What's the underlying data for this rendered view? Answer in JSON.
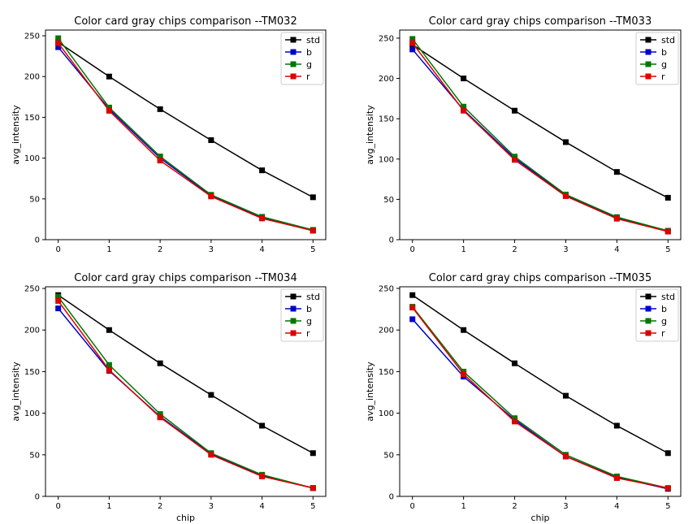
{
  "chart_data": [
    {
      "type": "line",
      "title": "Color card gray chips comparison --TM032",
      "xlabel": "",
      "ylabel": "avg_intensity",
      "x": [
        0,
        1,
        2,
        3,
        4,
        5
      ],
      "xlim": [
        -0.25,
        5.25
      ],
      "ylim": [
        0,
        257
      ],
      "yticks": [
        0,
        50,
        100,
        150,
        200,
        250
      ],
      "legend_position": "top-right",
      "grid": false,
      "series": [
        {
          "name": "std",
          "color": "#000000",
          "values": [
            242,
            200,
            160,
            122,
            85,
            52
          ]
        },
        {
          "name": "b",
          "color": "#0000cc",
          "values": [
            236,
            160,
            100,
            54,
            27,
            11
          ]
        },
        {
          "name": "g",
          "color": "#007700",
          "values": [
            247,
            162,
            102,
            55,
            28,
            12
          ]
        },
        {
          "name": "r",
          "color": "#dd0000",
          "values": [
            241,
            158,
            97,
            53,
            26,
            11
          ]
        }
      ]
    },
    {
      "type": "line",
      "title": "Color card gray chips comparison --TM033",
      "xlabel": "",
      "ylabel": "avg_intensity",
      "x": [
        0,
        1,
        2,
        3,
        4,
        5
      ],
      "xlim": [
        -0.25,
        5.25
      ],
      "ylim": [
        0,
        260
      ],
      "yticks": [
        0,
        50,
        100,
        150,
        200,
        250
      ],
      "legend_position": "top-right",
      "grid": false,
      "series": [
        {
          "name": "std",
          "color": "#000000",
          "values": [
            242,
            200,
            160,
            121,
            84,
            52
          ]
        },
        {
          "name": "b",
          "color": "#0000cc",
          "values": [
            236,
            161,
            101,
            55,
            27,
            11
          ]
        },
        {
          "name": "g",
          "color": "#007700",
          "values": [
            249,
            165,
            103,
            56,
            28,
            11
          ]
        },
        {
          "name": "r",
          "color": "#dd0000",
          "values": [
            244,
            160,
            99,
            54,
            26,
            10
          ]
        }
      ]
    },
    {
      "type": "line",
      "title": "Color card gray chips comparison --TM034",
      "xlabel": "chip",
      "ylabel": "avg_intensity",
      "x": [
        0,
        1,
        2,
        3,
        4,
        5
      ],
      "xlim": [
        -0.25,
        5.25
      ],
      "ylim": [
        0,
        252
      ],
      "yticks": [
        0,
        50,
        100,
        150,
        200,
        250
      ],
      "legend_position": "top-right",
      "grid": false,
      "series": [
        {
          "name": "std",
          "color": "#000000",
          "values": [
            242,
            200,
            160,
            122,
            85,
            52
          ]
        },
        {
          "name": "b",
          "color": "#0000cc",
          "values": [
            226,
            151,
            96,
            51,
            25,
            10
          ]
        },
        {
          "name": "g",
          "color": "#007700",
          "values": [
            240,
            158,
            99,
            52,
            26,
            10
          ]
        },
        {
          "name": "r",
          "color": "#dd0000",
          "values": [
            235,
            152,
            95,
            50,
            24,
            10
          ]
        }
      ]
    },
    {
      "type": "line",
      "title": "Color card gray chips comparison --TM035",
      "xlabel": "chip",
      "ylabel": "avg_intensity",
      "x": [
        0,
        1,
        2,
        3,
        4,
        5
      ],
      "xlim": [
        -0.25,
        5.25
      ],
      "ylim": [
        0,
        252
      ],
      "yticks": [
        0,
        50,
        100,
        150,
        200,
        250
      ],
      "legend_position": "top-right",
      "grid": false,
      "series": [
        {
          "name": "std",
          "color": "#000000",
          "values": [
            242,
            200,
            160,
            121,
            85,
            52
          ]
        },
        {
          "name": "b",
          "color": "#0000cc",
          "values": [
            213,
            144,
            92,
            48,
            23,
            9
          ]
        },
        {
          "name": "g",
          "color": "#007700",
          "values": [
            228,
            150,
            94,
            50,
            24,
            10
          ]
        },
        {
          "name": "r",
          "color": "#dd0000",
          "values": [
            227,
            147,
            90,
            48,
            22,
            10
          ]
        }
      ]
    }
  ]
}
